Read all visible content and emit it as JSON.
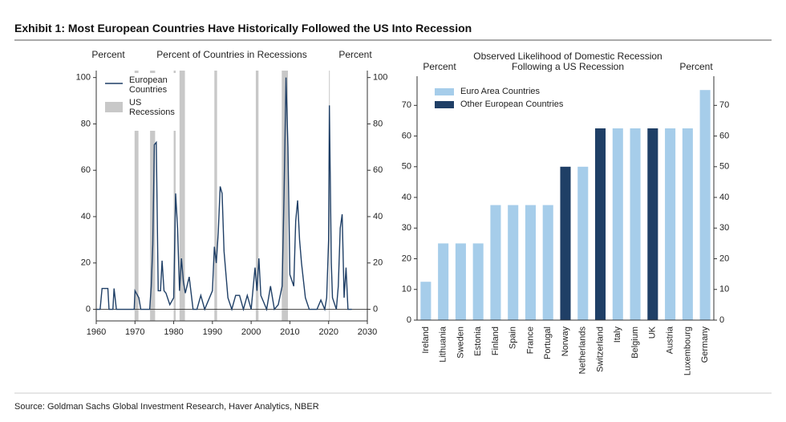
{
  "title": "Exhibit 1: Most European Countries Have Historically Followed the US Into Recession",
  "source": "Source: Goldman Sachs Global Investment Research, Haver Analytics, NBER",
  "chart_data": [
    {
      "type": "line",
      "title": "Percent of Countries in Recessions",
      "ylabel": "Percent",
      "y2label": "Percent",
      "x": [
        1960,
        1961,
        1961.5,
        1963,
        1963.3,
        1964.3,
        1964.6,
        1965.2,
        1969.8,
        1970,
        1971,
        1971.5,
        1973.8,
        1974.2,
        1974.6,
        1975,
        1975.5,
        1976,
        1976.6,
        1977,
        1977.5,
        1978,
        1979,
        1980,
        1980.5,
        1981,
        1981.5,
        1982,
        1982.5,
        1983,
        1984,
        1985,
        1986,
        1987,
        1988,
        1990,
        1990.5,
        1991,
        1991.5,
        1992,
        1992.5,
        1993,
        1994,
        1995,
        1996,
        1997,
        1998,
        1999,
        2000,
        2001,
        2001.5,
        2002,
        2002.5,
        2003,
        2004,
        2005,
        2006,
        2007,
        2008,
        2008.5,
        2009,
        2009.5,
        2010,
        2011,
        2011.5,
        2012,
        2012.5,
        2013,
        2014,
        2015,
        2017,
        2018,
        2019,
        2019.5,
        2020,
        2020.2,
        2020.7,
        2021,
        2022,
        2022.5,
        2023,
        2023.5,
        2024,
        2024.5,
        2025,
        2026
      ],
      "series": [
        {
          "name": "European Countries",
          "color": "#1f3f66",
          "values": [
            0,
            0,
            9,
            9,
            0,
            0,
            9,
            0,
            0,
            8,
            5,
            0,
            0,
            10,
            28,
            71,
            72,
            8,
            8,
            21,
            8,
            7,
            2,
            5,
            50,
            35,
            8,
            22,
            12,
            7,
            14,
            0,
            0,
            6,
            0,
            8,
            27,
            20,
            33,
            53,
            50,
            25,
            5,
            0,
            6,
            6,
            0,
            6,
            0,
            18,
            8,
            22,
            6,
            4,
            0,
            10,
            0,
            2,
            10,
            50,
            100,
            70,
            15,
            10,
            38,
            47,
            30,
            20,
            5,
            0,
            0,
            4,
            0,
            5,
            30,
            88,
            20,
            5,
            0,
            10,
            35,
            41,
            5,
            18,
            0,
            0
          ]
        }
      ],
      "recessions": {
        "name": "US Recessions",
        "color": "#c8c8c8",
        "spans": [
          [
            1969.9,
            1970.9
          ],
          [
            1973.9,
            1975.2
          ],
          [
            1980.0,
            1980.5
          ],
          [
            1981.5,
            1982.9
          ],
          [
            1990.5,
            1991.2
          ],
          [
            2001.2,
            2001.9
          ],
          [
            2007.9,
            2009.5
          ],
          [
            2020.1,
            2020.3
          ]
        ]
      },
      "xlim": [
        1960,
        2030
      ],
      "xticks": [
        1960,
        1970,
        1980,
        1990,
        2000,
        2010,
        2020,
        2030
      ],
      "ylim": [
        -5,
        103
      ],
      "yticks": [
        0,
        20,
        40,
        60,
        80,
        100
      ]
    },
    {
      "type": "bar",
      "title": "Observed Likelihood of Domestic Recession Following a US Recession",
      "ylabel": "Percent",
      "y2label": "Percent",
      "categories": [
        "Ireland",
        "Lithuania",
        "Sweden",
        "Estonia",
        "Finland",
        "Spain",
        "France",
        "Portugal",
        "Norway",
        "Netherlands",
        "Switzerland",
        "Italy",
        "Belgium",
        "UK",
        "Austria",
        "Luxembourg",
        "Germany"
      ],
      "series": [
        {
          "name": "Euro Area Countries",
          "color": "#a6cdea",
          "values": [
            12.5,
            25,
            25,
            25,
            37.5,
            37.5,
            37.5,
            37.5,
            null,
            50,
            null,
            62.5,
            62.5,
            null,
            62.5,
            62.5,
            75
          ]
        },
        {
          "name": "Other European Countries",
          "color": "#1f3f66",
          "values": [
            null,
            null,
            null,
            null,
            null,
            null,
            null,
            null,
            50,
            null,
            62.5,
            null,
            null,
            62.5,
            null,
            null,
            null
          ]
        }
      ],
      "ylim": [
        0,
        79.5
      ],
      "yticks": [
        0,
        10,
        20,
        30,
        40,
        50,
        60,
        70
      ]
    }
  ]
}
